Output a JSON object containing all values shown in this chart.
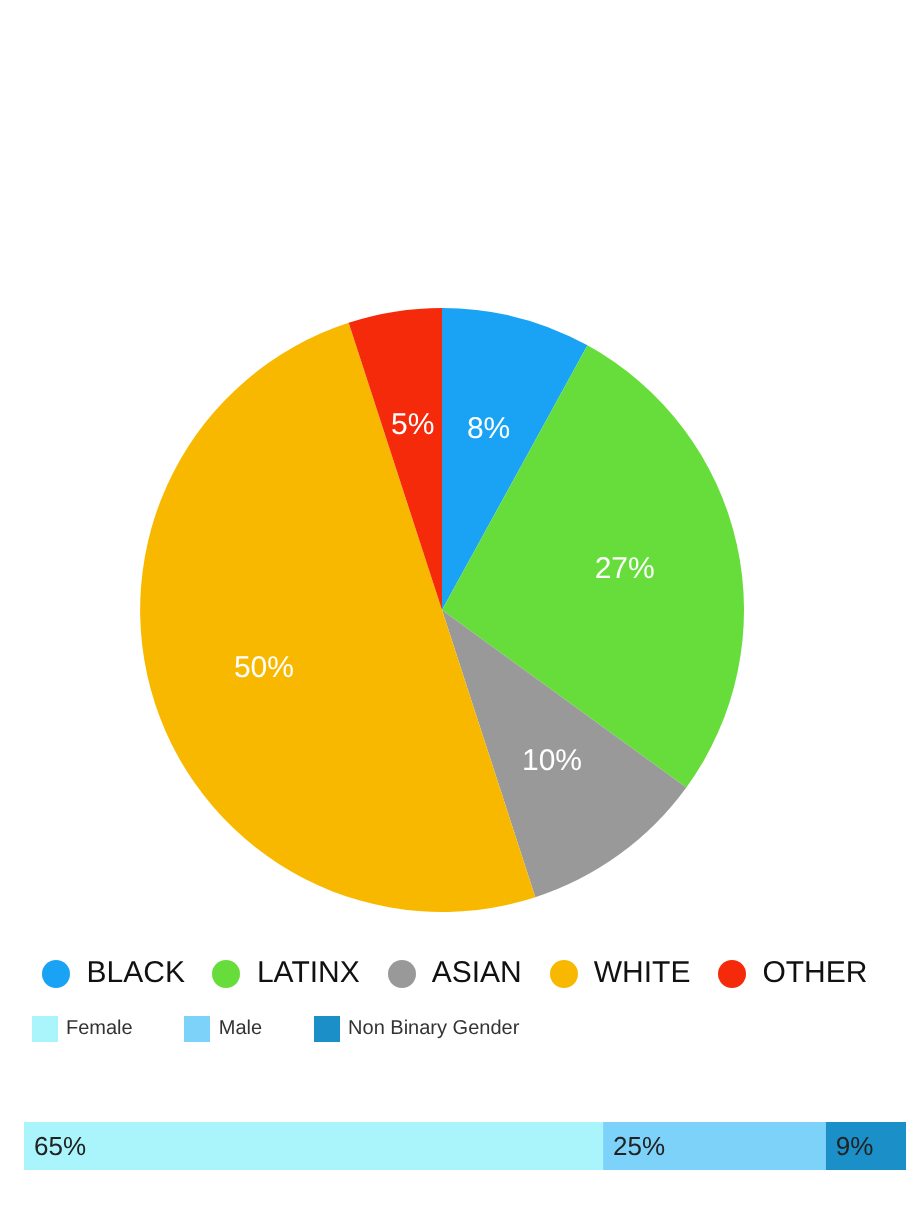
{
  "chart_data": [
    {
      "type": "pie",
      "categories": [
        "BLACK",
        "LATINX",
        "ASIAN",
        "WHITE",
        "OTHER"
      ],
      "values": [
        8,
        27,
        10,
        50,
        5
      ],
      "colors": [
        "#1aa3f5",
        "#66dd3a",
        "#999999",
        "#f9b800",
        "#f52a0a"
      ],
      "value_labels": [
        "8%",
        "27%",
        "10%",
        "50%",
        "5%"
      ],
      "legend": "bottom"
    },
    {
      "type": "bar",
      "orientation": "horizontal",
      "stacked": true,
      "categories": [
        null
      ],
      "series": [
        {
          "name": "Female",
          "color": "#aaf4fc",
          "values": [
            65
          ],
          "value_labels": [
            "65%"
          ]
        },
        {
          "name": "Male",
          "color": "#7dd2fa",
          "values": [
            25
          ],
          "value_labels": [
            "25%"
          ]
        },
        {
          "name": "Non Binary Gender",
          "color": "#1b8fc8",
          "values": [
            9
          ],
          "value_labels": [
            "9%"
          ]
        }
      ],
      "legend": "top left"
    }
  ]
}
